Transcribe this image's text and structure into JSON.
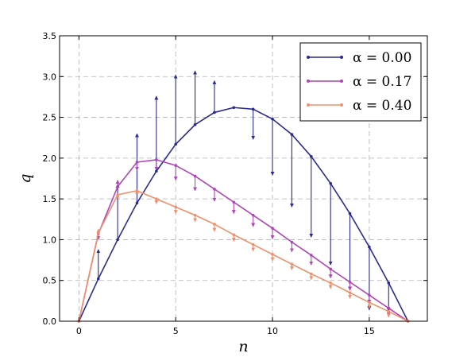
{
  "chart_data": {
    "type": "line",
    "xlabel": "n",
    "ylabel": "q",
    "xlim": [
      -1,
      18
    ],
    "ylim": [
      0,
      3.5
    ],
    "xticks": [
      0,
      5,
      10,
      15
    ],
    "yticks": [
      0.0,
      0.5,
      1.0,
      1.5,
      2.0,
      2.5,
      3.0,
      3.5
    ],
    "xtick_labels": [
      "0",
      "5",
      "10",
      "15"
    ],
    "ytick_labels": [
      "0.0",
      "0.5",
      "1.0",
      "1.5",
      "2.0",
      "2.5",
      "3.0",
      "3.5"
    ],
    "grid": true,
    "legend_position": "top-right",
    "series": [
      {
        "name": "α = 0.00",
        "color": "#2b2b8f",
        "x": [
          0,
          1,
          2,
          3,
          4,
          5,
          6,
          7,
          8,
          9,
          10,
          11,
          12,
          13,
          14,
          15,
          16,
          17
        ],
        "values": [
          0.0,
          0.52,
          1.0,
          1.45,
          1.84,
          2.17,
          2.41,
          2.56,
          2.62,
          2.6,
          2.48,
          2.29,
          2.02,
          1.69,
          1.32,
          0.91,
          0.47,
          0.0
        ],
        "arrow_ends": [
          null,
          0.88,
          1.68,
          2.3,
          2.76,
          3.02,
          3.07,
          2.95,
          2.62,
          2.23,
          1.79,
          1.4,
          1.03,
          0.69,
          0.38,
          0.14,
          0.12,
          null
        ]
      },
      {
        "name": "α = 0.17",
        "color": "#b044b8",
        "x": [
          0,
          1,
          2,
          3,
          4,
          5,
          6,
          7,
          8,
          9,
          10,
          11,
          12,
          13,
          14,
          15,
          16,
          17
        ],
        "values": [
          0.0,
          1.07,
          1.65,
          1.95,
          1.98,
          1.91,
          1.78,
          1.62,
          1.46,
          1.3,
          1.14,
          0.97,
          0.81,
          0.64,
          0.48,
          0.32,
          0.16,
          0.0
        ],
        "arrow_ends": [
          null,
          1.0,
          1.73,
          1.85,
          1.85,
          1.73,
          1.6,
          1.47,
          1.32,
          1.16,
          1.01,
          0.85,
          0.69,
          0.53,
          0.38,
          0.22,
          0.07,
          null
        ]
      },
      {
        "name": "α = 0.40",
        "color": "#f0906a",
        "x": [
          0,
          1,
          2,
          3,
          4,
          5,
          6,
          7,
          8,
          9,
          10,
          11,
          12,
          13,
          14,
          15,
          16,
          17
        ],
        "values": [
          0.0,
          1.08,
          1.55,
          1.6,
          1.5,
          1.4,
          1.3,
          1.19,
          1.06,
          0.94,
          0.82,
          0.7,
          0.58,
          0.47,
          0.35,
          0.23,
          0.12,
          0.0
        ],
        "arrow_ends": [
          null,
          1.13,
          1.56,
          1.61,
          1.44,
          1.32,
          1.22,
          1.1,
          0.98,
          0.86,
          0.74,
          0.63,
          0.51,
          0.4,
          0.28,
          0.16,
          0.05,
          null
        ]
      }
    ]
  }
}
